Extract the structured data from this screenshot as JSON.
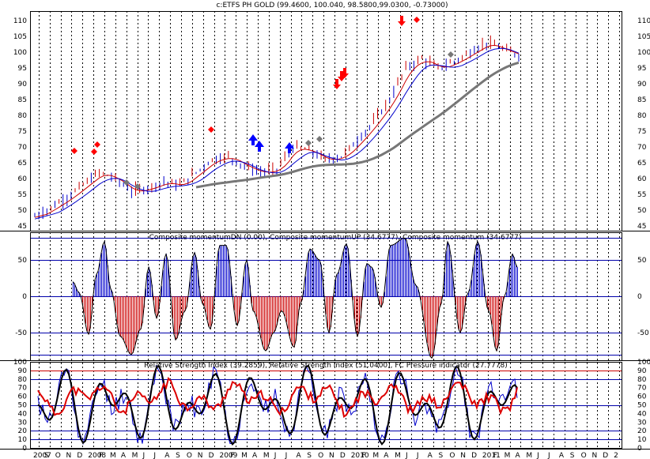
{
  "chart_data": [
    {
      "type": "line",
      "title": "c:ETFS PH GOLD (99.4600, 100.040, 98.5800,99.0300, -0.73000)",
      "yticks": [
        45,
        50,
        55,
        60,
        65,
        70,
        75,
        80,
        85,
        90,
        95,
        100,
        105,
        110
      ],
      "ylim": [
        43.5,
        113
      ],
      "grid": "vertical dotted"
    },
    {
      "type": "bar",
      "title": "Composite momentumDN (0.00), Composite momentumUP (34.6777), Composite momentum (34.6777)",
      "yticks": [
        -50,
        0,
        50
      ],
      "ylim": [
        -88,
        88
      ],
      "hlines": [
        -80,
        -50,
        0,
        50,
        80
      ]
    },
    {
      "type": "line",
      "title": "Relative Strength Index (39.2859), Relative Strength Index (51.0400), FC Pressure indicator (27.7778)",
      "yticks": [
        0,
        10,
        20,
        30,
        40,
        50,
        60,
        70,
        80,
        90,
        100
      ],
      "ylim": [
        0,
        100
      ],
      "hlines": [
        10,
        20,
        50,
        80,
        90
      ]
    }
  ],
  "xaxis": {
    "labels": [
      "2007",
      "S",
      "O",
      "N",
      "D",
      "2008",
      "F",
      "M",
      "A",
      "M",
      "J",
      "J",
      "A",
      "S",
      "O",
      "N",
      "D",
      "2009",
      "F",
      "M",
      "A",
      "M",
      "J",
      "J",
      "A",
      "S",
      "O",
      "N",
      "D",
      "2010",
      "F",
      "M",
      "A",
      "M",
      "J",
      "J",
      "A",
      "S",
      "O",
      "N",
      "D",
      "2011",
      "F",
      "M",
      "A",
      "M",
      "J",
      "J",
      "A",
      "S",
      "O",
      "N",
      "D",
      "2"
    ]
  },
  "colors": {
    "up": "#0000cc",
    "down": "#cc0000",
    "grid": "#000000",
    "ma_long": "#777777",
    "rsi_red": "#dd0000",
    "rsi_black": "#000000",
    "rsi_blue": "#0000cc",
    "marker_red": "#ff0000",
    "marker_blue": "#0000ff",
    "marker_gray": "#777777"
  }
}
